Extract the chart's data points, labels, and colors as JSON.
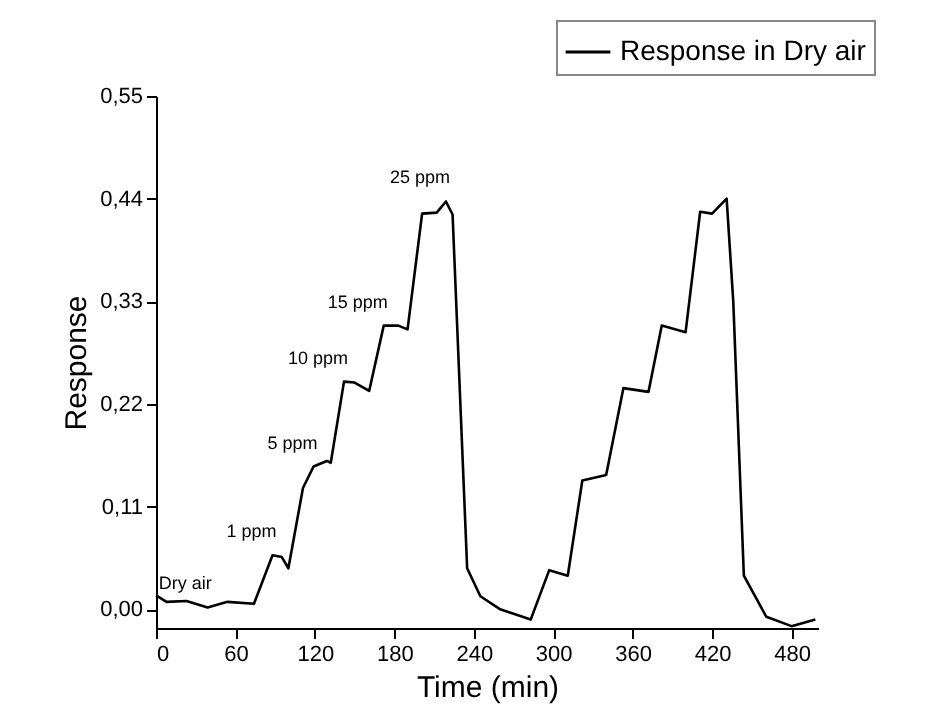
{
  "chart_data": {
    "type": "line",
    "xlabel": "Time (min)",
    "ylabel": "Response",
    "x": [
      0,
      8,
      23,
      39,
      54,
      74,
      88,
      95,
      100,
      111,
      119,
      129,
      132,
      142,
      150,
      161,
      172,
      183,
      190,
      201,
      212,
      219,
      224,
      235,
      245,
      260,
      283,
      297,
      311,
      322,
      340,
      353,
      372,
      382,
      400,
      411,
      420,
      431,
      436,
      444,
      461,
      480,
      498
    ],
    "series": [
      {
        "name": "Response in Dry air",
        "color": "#000000",
        "values": [
          0.015,
          0.008,
          0.009,
          0.002,
          0.008,
          0.006,
          0.058,
          0.056,
          0.044,
          0.13,
          0.153,
          0.159,
          0.157,
          0.244,
          0.243,
          0.234,
          0.304,
          0.304,
          0.3,
          0.424,
          0.425,
          0.437,
          0.423,
          0.044,
          0.014,
          0.0,
          -0.011,
          0.042,
          0.036,
          0.138,
          0.144,
          0.237,
          0.233,
          0.304,
          0.297,
          0.426,
          0.424,
          0.44,
          0.33,
          0.036,
          -0.008,
          -0.018,
          -0.011
        ]
      }
    ],
    "xlim": [
      0,
      500
    ],
    "xticks": [
      0,
      60,
      120,
      180,
      240,
      300,
      360,
      420,
      480
    ],
    "ylim": [
      -0.02,
      0.55
    ],
    "yticks": [
      {
        "value": 0,
        "label": "0,00"
      },
      {
        "value": 0.11,
        "label": "0,11"
      },
      {
        "value": 0.22,
        "label": "0,22"
      },
      {
        "value": 0.33,
        "label": "0,33"
      },
      {
        "value": 0.44,
        "label": "0,44"
      },
      {
        "value": 0.55,
        "label": "0,55"
      }
    ],
    "annotations": [
      {
        "text": "Dry air",
        "x": 39,
        "y": 0.002
      },
      {
        "text": "1 ppm",
        "x": 88,
        "y": 0.058
      },
      {
        "text": "5 ppm",
        "x": 119,
        "y": 0.153
      },
      {
        "text": "10 ppm",
        "x": 142,
        "y": 0.244
      },
      {
        "text": "15 ppm",
        "x": 172,
        "y": 0.304
      },
      {
        "text": "25 ppm",
        "x": 219,
        "y": 0.437
      }
    ],
    "grid": false,
    "legend": "top right",
    "marker": "none",
    "line_style": "solid"
  }
}
